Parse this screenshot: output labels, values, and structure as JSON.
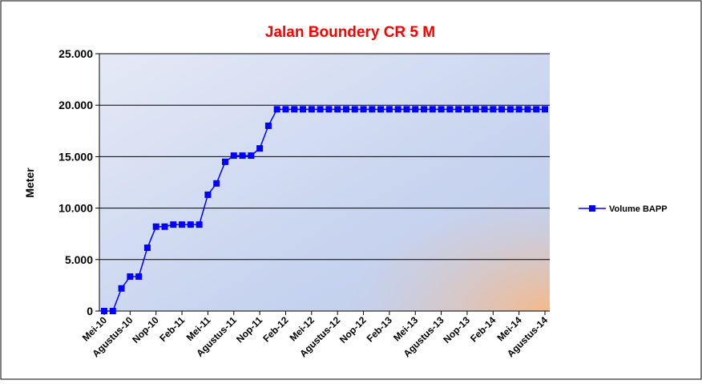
{
  "chart_data": {
    "type": "line",
    "title": "Jalan Boundery CR 5 M",
    "y_label": "Meter",
    "categories": [
      "Mei-10",
      null,
      null,
      "Agustus-10",
      null,
      null,
      "Nop-10",
      null,
      null,
      "Feb-11",
      null,
      null,
      "Mei-11",
      null,
      null,
      "Agustus-11",
      null,
      null,
      "Nop-11",
      null,
      null,
      "Feb-12",
      null,
      null,
      "Mei-12",
      null,
      null,
      "Agustus-12",
      null,
      null,
      "Nop-12",
      null,
      null,
      "Feb-13",
      null,
      null,
      "Mei-13",
      null,
      null,
      "Agustus-13",
      null,
      null,
      "Nop-13",
      null,
      null,
      "Feb-14",
      null,
      null,
      "Mei-14",
      null,
      null,
      "Agustus-14"
    ],
    "series": [
      {
        "name": "Volume BAPP",
        "color": "#0000ff",
        "values": [
          0,
          0,
          2200,
          3350,
          3350,
          6150,
          8200,
          8200,
          8400,
          8400,
          8400,
          8400,
          11300,
          12400,
          14500,
          15100,
          15100,
          15100,
          15800,
          18000,
          19600,
          19600,
          19600,
          19600,
          19600,
          19600,
          19600,
          19600,
          19600,
          19600,
          19600,
          19600,
          19600,
          19600,
          19600,
          19600,
          19600,
          19600,
          19600,
          19600,
          19600,
          19600,
          19600,
          19600,
          19600,
          19600,
          19600,
          19600,
          19600,
          19600,
          19600,
          19600
        ]
      }
    ],
    "ylim": [
      0,
      25000
    ],
    "yticks": [
      0,
      {
        "value": 5000,
        "label": "5.000"
      },
      {
        "value": 10000,
        "label": "10.000"
      },
      {
        "value": 15000,
        "label": "15.000"
      },
      {
        "value": 20000,
        "label": "20.000"
      },
      {
        "value": 25000,
        "label": "25.000"
      }
    ],
    "grid": true,
    "legend": "right"
  }
}
